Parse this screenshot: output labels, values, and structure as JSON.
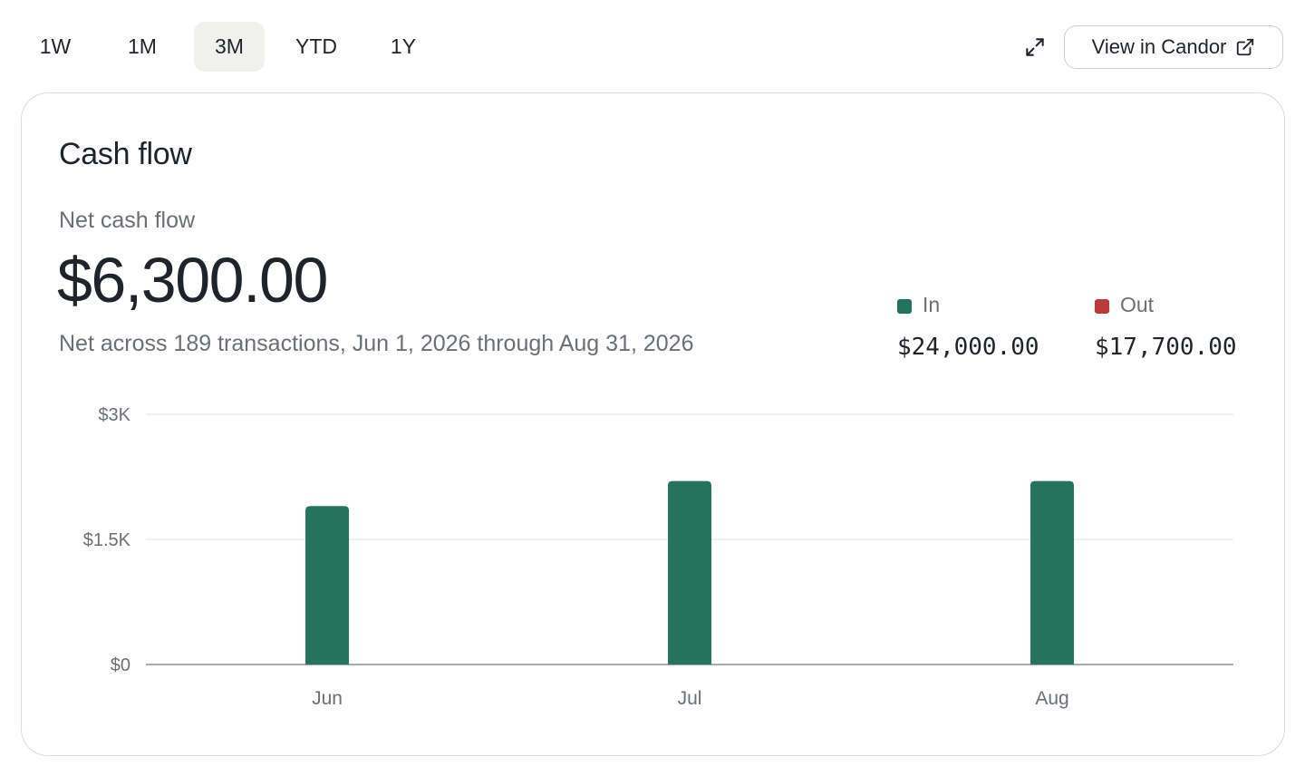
{
  "range_tabs": [
    {
      "label": "1W",
      "active": false
    },
    {
      "label": "1M",
      "active": false
    },
    {
      "label": "3M",
      "active": true
    },
    {
      "label": "YTD",
      "active": false
    },
    {
      "label": "1Y",
      "active": false
    }
  ],
  "toolbar": {
    "expand_icon": "expand-arrows-icon",
    "view_button_label": "View in Candor",
    "view_button_icon": "external-link-icon"
  },
  "card": {
    "title": "Cash flow",
    "metric_label": "Net cash flow",
    "metric_value": "$6,300.00",
    "metric_sub": "Net across 189 transactions, Jun 1, 2026 through Aug 31, 2026"
  },
  "legend": [
    {
      "label": "In",
      "amount": "$24,000.00",
      "color": "#24735c"
    },
    {
      "label": "Out",
      "amount": "$17,700.00",
      "color": "#b83a3a"
    }
  ],
  "chart_data": {
    "type": "bar",
    "categories": [
      "Jun",
      "Jul",
      "Aug"
    ],
    "series": [
      {
        "name": "In",
        "values": [
          1900,
          2200,
          2200
        ],
        "color": "#24735c"
      },
      {
        "name": "Out",
        "values": [
          0,
          0,
          0
        ],
        "color": "#b83a3a"
      }
    ],
    "y_ticks": [
      {
        "value": 0,
        "label": "$0"
      },
      {
        "value": 1500,
        "label": "$1.5K"
      },
      {
        "value": 3000,
        "label": "$3K"
      }
    ],
    "ylim": [
      0,
      3000
    ],
    "grid": true
  }
}
